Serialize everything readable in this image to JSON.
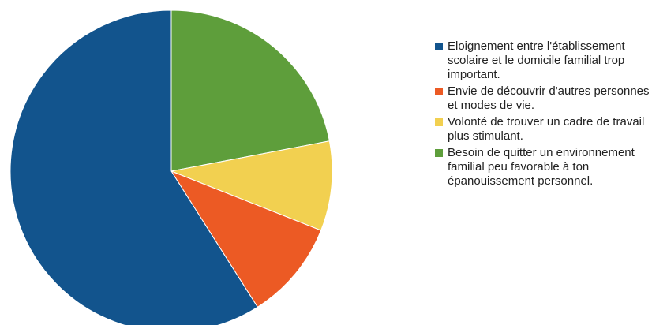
{
  "chart_data": {
    "type": "pie",
    "title": "",
    "start_angle_deg": 0,
    "direction": "clockwise",
    "slices": [
      {
        "label": "Besoin de quitter un environnement familial peu favorable à ton épanouissement personnel.",
        "value": 22,
        "color": "#5e9e3b"
      },
      {
        "label": "Volonté de trouver un cadre de travail plus stimulant.",
        "value": 9,
        "color": "#f2d050"
      },
      {
        "label": "Envie de découvrir d'autres personnes et modes de vie.",
        "value": 10,
        "color": "#ec5a24"
      },
      {
        "label": "Eloignement entre l'établissement scolaire et le domicile familial trop important.",
        "value": 59,
        "color": "#12548d"
      }
    ],
    "legend": {
      "position": "right",
      "order": [
        3,
        2,
        1,
        0
      ]
    }
  }
}
